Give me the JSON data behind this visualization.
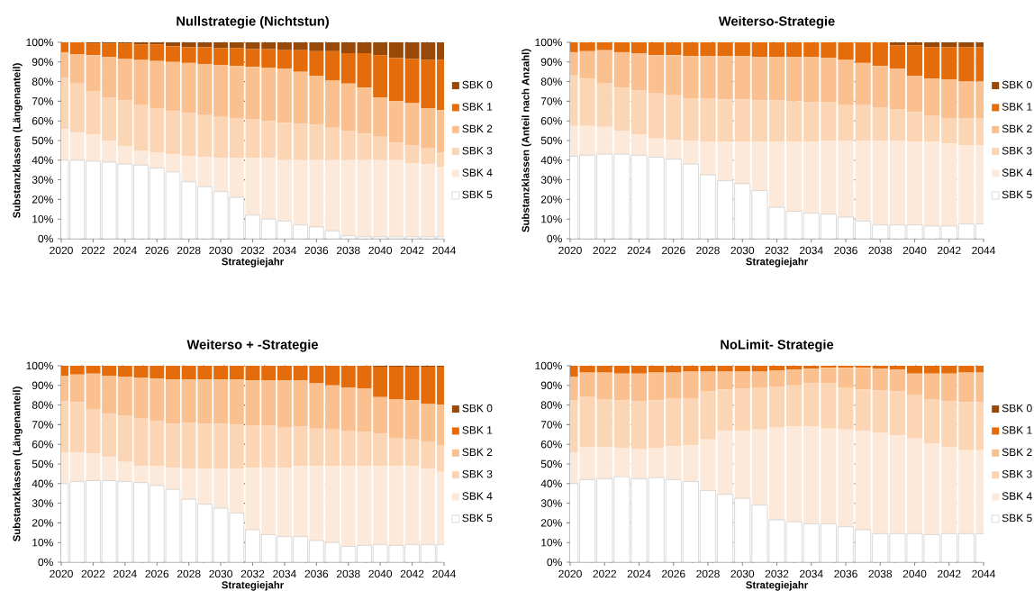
{
  "chart_data": [
    {
      "type": "bar",
      "stacked": true,
      "title": "Nullstrategie (Nichtstun)",
      "xlabel": "Strategiejahr",
      "ylabel": "Substanzklassen (Längenanteil)",
      "x": [
        2020,
        2021,
        2022,
        2023,
        2024,
        2025,
        2026,
        2027,
        2028,
        2029,
        2030,
        2031,
        2032,
        2033,
        2034,
        2035,
        2036,
        2037,
        2038,
        2039,
        2040,
        2041,
        2042,
        2043,
        2044
      ],
      "xlim": [
        2020,
        2044
      ],
      "xticks": [
        2020,
        2022,
        2024,
        2026,
        2028,
        2030,
        2032,
        2034,
        2036,
        2038,
        2040,
        2042,
        2044
      ],
      "ylim": [
        0,
        100
      ],
      "yticks": [
        {
          "value": 0,
          "label": "0%"
        },
        {
          "value": 10,
          "label": "10%"
        },
        {
          "value": 20,
          "label": "20%"
        },
        {
          "value": 30,
          "label": "30%"
        },
        {
          "value": 40,
          "label": "40%"
        },
        {
          "value": 50,
          "label": "50%"
        },
        {
          "value": 60,
          "label": "60%"
        },
        {
          "value": 70,
          "label": "70%"
        },
        {
          "value": 80,
          "label": "80%"
        },
        {
          "value": 90,
          "label": "90%"
        },
        {
          "value": 100,
          "label": "100%"
        }
      ],
      "grid": "y",
      "legend": "right",
      "series": [
        {
          "name": "SBK 5",
          "color": "#ffffff",
          "values": [
            40,
            40,
            39.5,
            39,
            38,
            37.5,
            36,
            34,
            29,
            26.5,
            24,
            21,
            12,
            10,
            9,
            7,
            6,
            4,
            1.5,
            1,
            1,
            1,
            1,
            1,
            1
          ]
        },
        {
          "name": "SBK 4",
          "color": "#fde9d9",
          "values": [
            16,
            14,
            13.5,
            11,
            9,
            7.5,
            8,
            9,
            13,
            15,
            17,
            20,
            29,
            31,
            31,
            33,
            34,
            36,
            38.5,
            39,
            39,
            39,
            37.5,
            37,
            35.5
          ]
        },
        {
          "name": "SBK 3",
          "color": "#fcd5b4",
          "values": [
            26,
            25,
            22,
            22,
            23.5,
            23,
            22.5,
            22,
            22,
            21.5,
            21,
            20.5,
            20,
            19,
            19,
            18.5,
            18,
            16.5,
            15,
            13.5,
            12,
            9,
            9,
            8,
            7.5
          ]
        },
        {
          "name": "SBK 2",
          "color": "#fac08f",
          "values": [
            13,
            15,
            18.5,
            20.5,
            21,
            23,
            24,
            25,
            25.5,
            26,
            26.5,
            26.5,
            26.5,
            27,
            27.5,
            26.5,
            25,
            24,
            24,
            23.5,
            20,
            21,
            21.5,
            20.5,
            21.5
          ]
        },
        {
          "name": "SBK 1",
          "color": "#e46c0a",
          "values": [
            5,
            6,
            6,
            7,
            8,
            8,
            8.5,
            8,
            8,
            8.5,
            8.5,
            9,
            9,
            9.5,
            9.5,
            11,
            12.5,
            15,
            15.5,
            17.5,
            21.5,
            22,
            22.5,
            24.5,
            25.5
          ]
        },
        {
          "name": "SBK 0",
          "color": "#984807",
          "values": [
            0,
            0,
            0.5,
            0.5,
            0.5,
            1,
            1,
            2,
            2.5,
            2.5,
            3,
            3,
            3.5,
            3.5,
            4,
            4,
            4.5,
            4.5,
            5.5,
            5.5,
            6.5,
            8,
            8.5,
            9,
            9
          ]
        }
      ]
    },
    {
      "type": "bar",
      "stacked": true,
      "title": "Weiterso-Strategie",
      "xlabel": "Strategiejahr",
      "ylabel": "Substanzklassen (Anteil nach Anzahl)",
      "x": [
        2020,
        2021,
        2022,
        2023,
        2024,
        2025,
        2026,
        2027,
        2028,
        2029,
        2030,
        2031,
        2032,
        2033,
        2034,
        2035,
        2036,
        2037,
        2038,
        2039,
        2040,
        2041,
        2042,
        2043,
        2044
      ],
      "xlim": [
        2020,
        2044
      ],
      "xticks": [
        2020,
        2022,
        2024,
        2026,
        2028,
        2030,
        2032,
        2034,
        2036,
        2038,
        2040,
        2042,
        2044
      ],
      "ylim": [
        0,
        100
      ],
      "yticks": [
        {
          "value": 0,
          "label": "0%"
        },
        {
          "value": 10,
          "label": "10%"
        },
        {
          "value": 20,
          "label": "20%"
        },
        {
          "value": 30,
          "label": "30%"
        },
        {
          "value": 40,
          "label": "40%"
        },
        {
          "value": 50,
          "label": "50%"
        },
        {
          "value": 60,
          "label": "60%"
        },
        {
          "value": 70,
          "label": "70%"
        },
        {
          "value": 80,
          "label": "80%"
        },
        {
          "value": 90,
          "label": "90%"
        },
        {
          "value": 100,
          "label": "100%"
        }
      ],
      "grid": "y",
      "legend": "right",
      "series": [
        {
          "name": "SBK 5",
          "color": "#ffffff",
          "values": [
            42,
            42.5,
            43,
            43,
            42.5,
            41.5,
            40.5,
            38,
            32.5,
            29.5,
            28,
            24.5,
            16,
            14,
            13,
            12.5,
            11,
            9,
            7,
            7,
            7,
            6.5,
            6.5,
            7.5,
            7.5
          ]
        },
        {
          "name": "SBK 4",
          "color": "#fde9d9",
          "values": [
            15.5,
            15,
            14,
            12,
            10.5,
            9.5,
            10,
            12,
            17,
            20,
            21.5,
            25,
            33.5,
            35.5,
            36.5,
            37.5,
            39,
            41,
            43,
            43,
            42.5,
            43,
            42,
            40,
            40
          ]
        },
        {
          "name": "SBK 3",
          "color": "#fcd5b4",
          "values": [
            26,
            24,
            22,
            22,
            22.5,
            23,
            22.5,
            21.5,
            22,
            21.5,
            21.5,
            21,
            21,
            20.5,
            20,
            19.5,
            18,
            18,
            17,
            16,
            15,
            13,
            13,
            14,
            14
          ]
        },
        {
          "name": "SBK 2",
          "color": "#fac08f",
          "values": [
            11.5,
            14,
            17,
            18,
            19,
            19.5,
            20.5,
            21.5,
            21.5,
            22,
            22,
            22,
            22,
            22.5,
            23,
            22.5,
            23,
            21.5,
            21,
            20.5,
            18.5,
            19,
            19.5,
            18.5,
            18.5
          ]
        },
        {
          "name": "SBK 1",
          "color": "#e46c0a",
          "values": [
            5,
            4.5,
            4,
            5,
            5.5,
            6.5,
            6.5,
            7,
            7,
            7,
            7,
            7.5,
            7.5,
            7.5,
            7.5,
            8,
            9,
            10.5,
            12,
            12,
            15.5,
            16,
            16.5,
            17.5,
            17.5
          ]
        },
        {
          "name": "SBK 0",
          "color": "#984807",
          "values": [
            0,
            0,
            0,
            0,
            0,
            0,
            0,
            0,
            0,
            0,
            0,
            0,
            0,
            0,
            0,
            0,
            0,
            0,
            0,
            1.5,
            1.5,
            2.5,
            2.5,
            2.5,
            2.5
          ]
        }
      ]
    },
    {
      "type": "bar",
      "stacked": true,
      "title": "Weiterso + -Strategie",
      "xlabel": "Strategiejahr",
      "ylabel": "Substanzklassen (Längenanteil)",
      "x": [
        2020,
        2021,
        2022,
        2023,
        2024,
        2025,
        2026,
        2027,
        2028,
        2029,
        2030,
        2031,
        2032,
        2033,
        2034,
        2035,
        2036,
        2037,
        2038,
        2039,
        2040,
        2041,
        2042,
        2043,
        2044
      ],
      "xlim": [
        2020,
        2044
      ],
      "xticks": [
        2020,
        2022,
        2024,
        2026,
        2028,
        2030,
        2032,
        2034,
        2036,
        2038,
        2040,
        2042,
        2044
      ],
      "ylim": [
        0,
        100
      ],
      "yticks": [
        {
          "value": 0,
          "label": "0%"
        },
        {
          "value": 10,
          "label": "10%"
        },
        {
          "value": 20,
          "label": "20%"
        },
        {
          "value": 30,
          "label": "30%"
        },
        {
          "value": 40,
          "label": "40%"
        },
        {
          "value": 50,
          "label": "50%"
        },
        {
          "value": 60,
          "label": "60%"
        },
        {
          "value": 70,
          "label": "70%"
        },
        {
          "value": 80,
          "label": "80%"
        },
        {
          "value": 90,
          "label": "90%"
        },
        {
          "value": 100,
          "label": "100%"
        }
      ],
      "grid": "y",
      "legend": "right",
      "series": [
        {
          "name": "SBK 5",
          "color": "#ffffff",
          "values": [
            40,
            41,
            41.5,
            41.5,
            41,
            40.5,
            39,
            37,
            32,
            29.5,
            27.5,
            25,
            16.5,
            14,
            13,
            13,
            11,
            10,
            8,
            8.5,
            9,
            8.5,
            9,
            9,
            9
          ]
        },
        {
          "name": "SBK 4",
          "color": "#fde9d9",
          "values": [
            16,
            15,
            14,
            12,
            10,
            8.5,
            10,
            11,
            15.5,
            18,
            20,
            22.5,
            31.5,
            34,
            35,
            36,
            38,
            39,
            41,
            40.5,
            40,
            40.5,
            40,
            38.5,
            37
          ]
        },
        {
          "name": "SBK 3",
          "color": "#fcd5b4",
          "values": [
            26,
            25.5,
            22.5,
            22,
            23.5,
            24,
            23,
            22.5,
            23.5,
            23,
            23,
            22.5,
            21.5,
            21.5,
            20.5,
            20,
            19,
            18.5,
            18,
            17.5,
            16.5,
            14,
            13.5,
            14,
            13.5
          ]
        },
        {
          "name": "SBK 2",
          "color": "#fac08f",
          "values": [
            13,
            14,
            18,
            19.5,
            20,
            21,
            21.5,
            22.5,
            22,
            22.5,
            22.5,
            23,
            23,
            23,
            24,
            23.5,
            23,
            22.5,
            22,
            22,
            18.5,
            20,
            20,
            19,
            20.5
          ]
        },
        {
          "name": "SBK 1",
          "color": "#e46c0a",
          "values": [
            5,
            4.5,
            4,
            5,
            5.5,
            6,
            6.5,
            7,
            7,
            7,
            7,
            7,
            7.5,
            7.5,
            7.5,
            7.5,
            9,
            10,
            11,
            11.5,
            15.5,
            16.5,
            17,
            19,
            19.5
          ]
        },
        {
          "name": "SBK 0",
          "color": "#984807",
          "values": [
            0,
            0,
            0,
            0,
            0,
            0,
            0,
            0,
            0,
            0,
            0,
            0,
            0,
            0,
            0,
            0,
            0,
            0,
            0,
            0,
            0.5,
            0.5,
            0.5,
            0.5,
            0.5
          ]
        }
      ]
    },
    {
      "type": "bar",
      "stacked": true,
      "title": "NoLimit- Strategie",
      "xlabel": "Strategiejahr",
      "x": [
        2020,
        2021,
        2022,
        2023,
        2024,
        2025,
        2026,
        2027,
        2028,
        2029,
        2030,
        2031,
        2032,
        2033,
        2034,
        2035,
        2036,
        2037,
        2038,
        2039,
        2040,
        2041,
        2042,
        2043,
        2044
      ],
      "xlim": [
        2020,
        2044
      ],
      "xticks": [
        2020,
        2022,
        2024,
        2026,
        2028,
        2030,
        2032,
        2034,
        2036,
        2038,
        2040,
        2042,
        2044
      ],
      "ylim": [
        0,
        100
      ],
      "yticks": [
        {
          "value": 0,
          "label": "0%"
        },
        {
          "value": 10,
          "label": "10%"
        },
        {
          "value": 20,
          "label": "20%"
        },
        {
          "value": 30,
          "label": "30%"
        },
        {
          "value": 40,
          "label": "40%"
        },
        {
          "value": 50,
          "label": "50%"
        },
        {
          "value": 60,
          "label": "60%"
        },
        {
          "value": 70,
          "label": "70%"
        },
        {
          "value": 80,
          "label": "80%"
        },
        {
          "value": 90,
          "label": "90%"
        },
        {
          "value": 100,
          "label": "100%"
        }
      ],
      "grid": "y",
      "legend": "right",
      "series": [
        {
          "name": "SBK 5",
          "color": "#ffffff",
          "values": [
            40,
            42,
            42.5,
            43.5,
            42.5,
            43,
            42,
            41,
            36.5,
            34.5,
            32.5,
            29,
            21.5,
            20.5,
            19.5,
            19.5,
            18,
            16.5,
            14.5,
            14.5,
            14.5,
            14,
            14.5,
            14.5,
            14.5
          ]
        },
        {
          "name": "SBK 4",
          "color": "#fde9d9",
          "values": [
            16,
            16.5,
            16,
            14.5,
            15,
            15,
            17,
            18.5,
            26,
            32.5,
            34.5,
            38.5,
            47,
            48.5,
            49.5,
            48.5,
            49.5,
            50.5,
            51.5,
            50,
            48.5,
            46.5,
            44,
            42.5,
            42.5
          ]
        },
        {
          "name": "SBK 3",
          "color": "#fcd5b4",
          "values": [
            26.5,
            25.5,
            24.5,
            24.5,
            24.5,
            24.5,
            24.5,
            24,
            24.5,
            21,
            21.5,
            21.5,
            21,
            21,
            22,
            23,
            21.5,
            21,
            21.5,
            22.5,
            22,
            22.5,
            23.5,
            24.5,
            24.5
          ]
        },
        {
          "name": "SBK 2",
          "color": "#fac08f",
          "values": [
            12,
            12.5,
            13.5,
            13.5,
            14,
            14,
            13,
            13.5,
            10,
            9,
            8.5,
            8,
            8,
            8,
            7.5,
            8,
            10,
            11,
            11,
            11,
            11,
            13,
            14,
            15,
            15
          ]
        },
        {
          "name": "SBK 1",
          "color": "#e46c0a",
          "values": [
            5.5,
            3.5,
            3.5,
            4,
            4,
            3.5,
            3.5,
            3,
            3,
            3,
            3,
            3,
            2.5,
            2,
            1.5,
            1,
            1,
            1,
            1.5,
            2,
            4,
            4,
            4,
            3.5,
            3.5
          ]
        },
        {
          "name": "SBK 0",
          "color": "#984807",
          "values": [
            0,
            0,
            0,
            0,
            0,
            0,
            0,
            0,
            0,
            0,
            0,
            0,
            0,
            0,
            0,
            0,
            0,
            0,
            0,
            0,
            0,
            0,
            0,
            0,
            0
          ]
        }
      ]
    }
  ]
}
